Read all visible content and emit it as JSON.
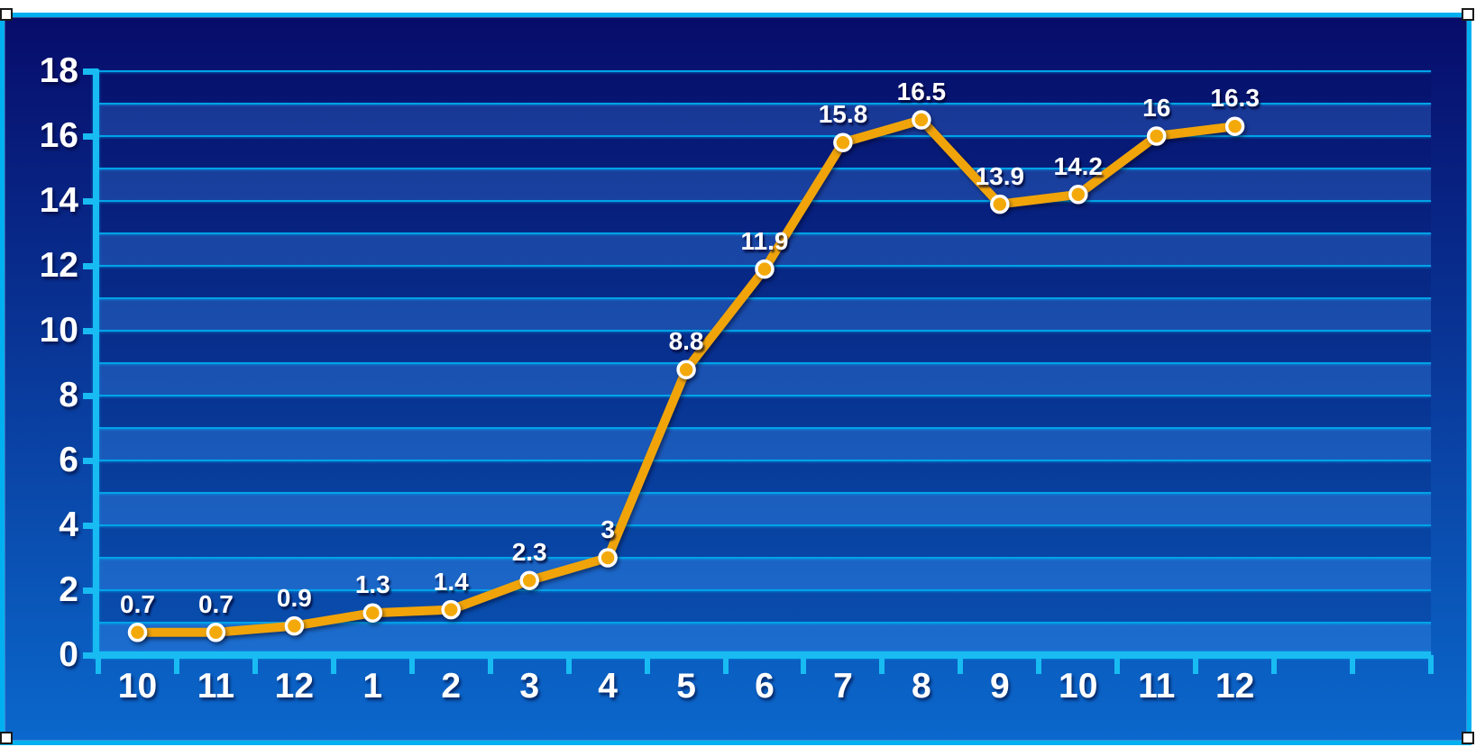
{
  "page": {
    "background_color": "#ffffff"
  },
  "chart_frame": {
    "border_color": "#00b0f0",
    "background_top_color": "#070c6a",
    "background_bottom_color": "#0b68cc",
    "selection_handles": [
      "top-left",
      "top-right",
      "bottom-left",
      "bottom-right"
    ]
  },
  "chart_data": {
    "type": "line",
    "title": "",
    "xlabel": "",
    "ylabel": "",
    "categories": [
      "10",
      "11",
      "12",
      "1",
      "2",
      "3",
      "4",
      "5",
      "6",
      "7",
      "8",
      "9",
      "10",
      "11",
      "12"
    ],
    "series": [
      {
        "name": "monthly-values",
        "values": [
          0.7,
          0.7,
          0.9,
          1.3,
          1.4,
          2.3,
          3,
          8.8,
          11.9,
          15.8,
          16.5,
          13.9,
          14.2,
          16,
          16.3
        ],
        "point_labels": [
          "0.7",
          "0.7",
          "0.9",
          "1.3",
          "1.4",
          "2.3",
          "3",
          "8.8",
          "11.9",
          "15.8",
          "16.5",
          "13.9",
          "14.2",
          "16",
          "16.3"
        ],
        "line_color": "#f0a40a",
        "marker_fill": "#f4a90b",
        "marker_ring_color": "#ffffff"
      }
    ],
    "ylim": [
      0,
      18
    ],
    "y_tick_labels": [
      "0",
      "2",
      "4",
      "6",
      "8",
      "10",
      "12",
      "14",
      "16",
      "18"
    ],
    "y_label_step": 2,
    "y_grid_step": 1,
    "x_total_slots": 17,
    "grid": true,
    "legend": "none",
    "gridline_color": "#00a2e8",
    "axis_color": "#18bcf2",
    "axis_text_color": "#ffffff",
    "data_label_color": "#ffffff"
  }
}
